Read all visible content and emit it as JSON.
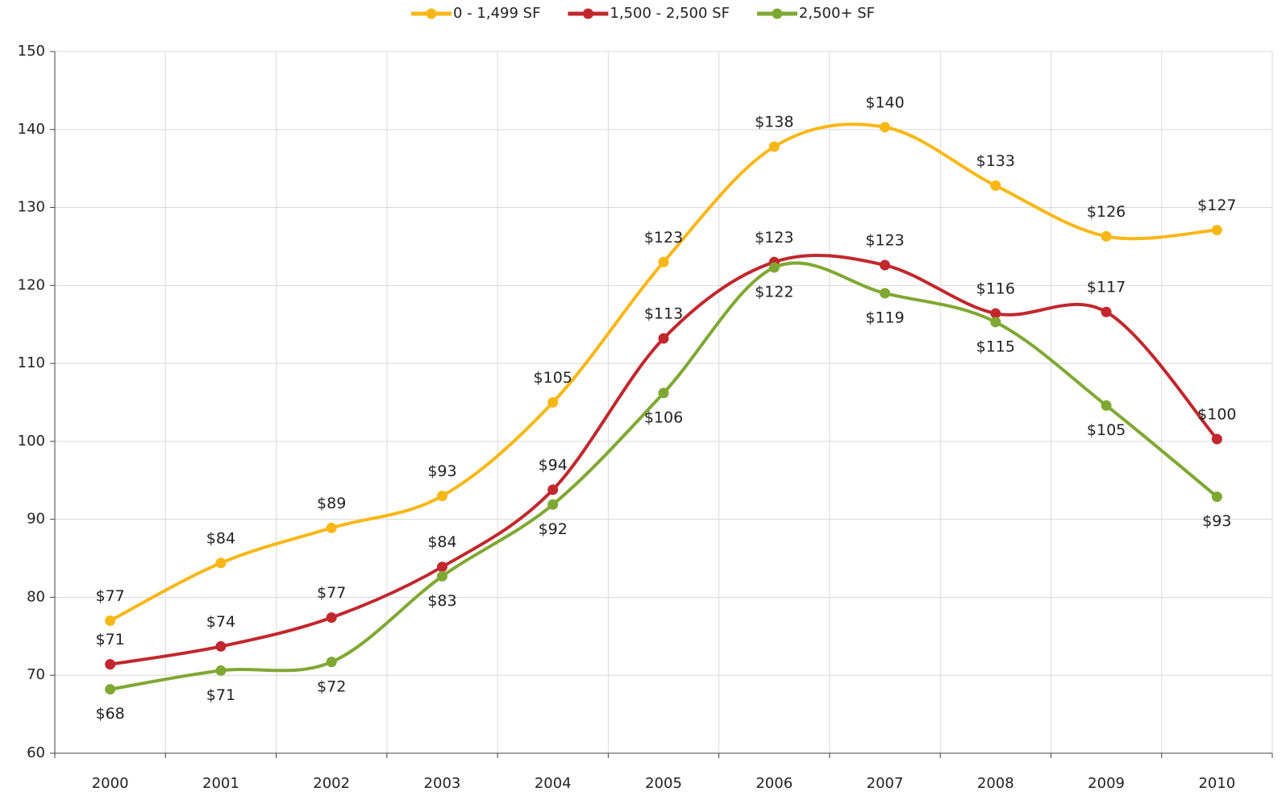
{
  "chart_data": {
    "type": "line",
    "categories": [
      "2000",
      "2001",
      "2002",
      "2003",
      "2004",
      "2005",
      "2006",
      "2007",
      "2008",
      "2009",
      "2010"
    ],
    "series": [
      {
        "name": "0 - 1,499 SF",
        "color": "#f9b715",
        "values": [
          77.0,
          84.4,
          88.9,
          93.0,
          105.0,
          123.0,
          137.8,
          140.3,
          132.8,
          126.3,
          127.1
        ],
        "value_labels": [
          "$77",
          "$84",
          "$89",
          "$93",
          "$105",
          "$123",
          "$138",
          "$140",
          "$133",
          "$126",
          "$127"
        ]
      },
      {
        "name": "1,500 - 2,500 SF",
        "color": "#c1272d",
        "values": [
          71.4,
          73.7,
          77.4,
          83.9,
          93.8,
          113.2,
          123.0,
          122.6,
          116.4,
          116.6,
          100.3
        ],
        "value_labels": [
          "$71",
          "$74",
          "$77",
          "$84",
          "$94",
          "$113",
          "$123",
          "$123",
          "$116",
          "$117",
          "$100"
        ]
      },
      {
        "name": "2,500+ SF",
        "color": "#7fa832",
        "values": [
          68.2,
          70.6,
          71.7,
          82.7,
          91.9,
          106.2,
          122.3,
          119.0,
          115.3,
          104.6,
          92.9
        ],
        "value_labels": [
          "$68",
          "$71",
          "$72",
          "$83",
          "$92",
          "$106",
          "$122",
          "$119",
          "$115",
          "$105",
          "$93"
        ]
      }
    ],
    "ylim": [
      60,
      150
    ],
    "yticks": [
      60,
      70,
      80,
      90,
      100,
      110,
      120,
      130,
      140,
      150
    ],
    "grid": true,
    "legend": "top"
  }
}
